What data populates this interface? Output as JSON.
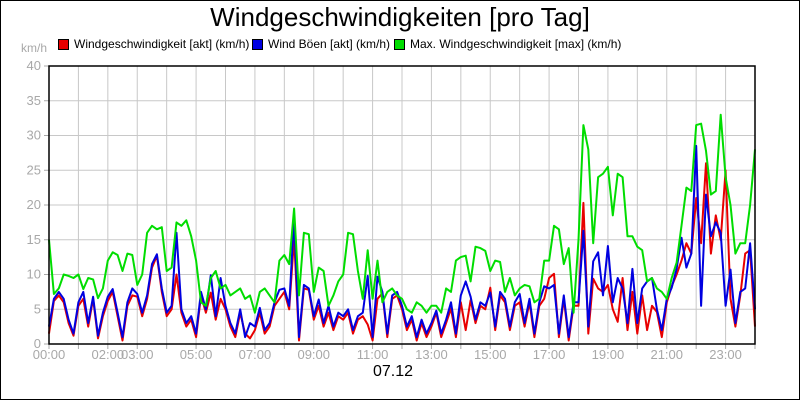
{
  "title": "Windgeschwindigkeiten [pro Tag]",
  "unit_label": "km/h",
  "date_label": "07.12",
  "colors": {
    "background": "#ffffff",
    "grid": "#c8c8c8",
    "axis": "#000000",
    "tick_text": "#a8a8a8",
    "title_text": "#000000"
  },
  "chart_data": {
    "type": "line",
    "title": "Windgeschwindigkeiten [pro Tag]",
    "xlabel": "07.12",
    "ylabel": "km/h",
    "ylim": [
      0,
      40
    ],
    "y_ticks": [
      0,
      5,
      10,
      15,
      20,
      25,
      30,
      35,
      40
    ],
    "x_hours_range": [
      0,
      24
    ],
    "grid": "vertical line every hour, horizontal every 5 km/h",
    "legend_position": "top",
    "interval_minutes": 10,
    "x_tick_labels": [
      {
        "hour": 0,
        "label": "00:00"
      },
      {
        "hour": 2,
        "label": "02:00"
      },
      {
        "hour": 3,
        "label": "03:00"
      },
      {
        "hour": 5,
        "label": "05:00"
      },
      {
        "hour": 7,
        "label": "07:00"
      },
      {
        "hour": 9,
        "label": "09:00"
      },
      {
        "hour": 11,
        "label": "11:00"
      },
      {
        "hour": 13,
        "label": "13:00"
      },
      {
        "hour": 15,
        "label": "15:00"
      },
      {
        "hour": 17,
        "label": "17:00"
      },
      {
        "hour": 19,
        "label": "19:00"
      },
      {
        "hour": 21,
        "label": "21:00"
      },
      {
        "hour": 23,
        "label": "23:00"
      }
    ],
    "series": [
      {
        "name": "Windgeschwindigkeit [akt] (km/h)",
        "color": "#e80000",
        "values": [
          1.5,
          6.2,
          7.0,
          6.0,
          3.0,
          1.2,
          5.5,
          6.5,
          2.5,
          6.5,
          0.8,
          4.0,
          6.2,
          7.5,
          4.0,
          0.5,
          5.5,
          7.0,
          6.8,
          4.0,
          6.5,
          11.0,
          12.7,
          7.5,
          4.0,
          5.0,
          10.0,
          4.5,
          2.5,
          3.5,
          1.0,
          7.0,
          4.5,
          7.4,
          3.5,
          6.5,
          5.0,
          2.5,
          1.0,
          4.5,
          1.5,
          0.8,
          2.0,
          4.5,
          1.5,
          2.5,
          5.5,
          6.5,
          7.5,
          5.0,
          15.3,
          0.5,
          8.0,
          7.8,
          3.5,
          5.5,
          2.5,
          4.5,
          2.0,
          4.0,
          3.5,
          4.5,
          1.5,
          3.5,
          4.0,
          2.8,
          0.5,
          6.5,
          7.3,
          1.0,
          6.5,
          7.0,
          5.0,
          2.0,
          3.5,
          0.5,
          3.0,
          1.0,
          2.5,
          4.5,
          1.0,
          3.0,
          5.1,
          1.0,
          6.0,
          2.0,
          6.3,
          3.0,
          5.5,
          5.0,
          8.1,
          2.0,
          7.0,
          6.0,
          2.0,
          5.5,
          6.0,
          2.5,
          6.0,
          1.0,
          5.5,
          6.5,
          9.5,
          10.1,
          1.0,
          6.5,
          0.5,
          5.5,
          5.5,
          20.3,
          1.5,
          9.4,
          8.0,
          7.5,
          8.5,
          5.0,
          3.2,
          9.5,
          2.0,
          7.5,
          1.5,
          7.0,
          2.0,
          5.5,
          4.6,
          1.0,
          6.0,
          8.3,
          10.0,
          12.0,
          14.5,
          13.0,
          21.0,
          14.5,
          26.0,
          13.0,
          18.5,
          15.0,
          25.0,
          6.5,
          2.5,
          7.0,
          13.0,
          13.5,
          2.5
        ]
      },
      {
        "name": "Wind Böen [akt] (km/h)",
        "color": "#0000e0",
        "values": [
          2.5,
          6.5,
          7.5,
          6.5,
          3.5,
          1.5,
          6.0,
          7.5,
          3.0,
          6.8,
          1.2,
          4.5,
          6.8,
          7.9,
          4.5,
          1.0,
          6.0,
          8.0,
          7.2,
          4.5,
          7.0,
          11.5,
          12.9,
          8.0,
          4.5,
          5.5,
          16.0,
          5.0,
          3.0,
          4.0,
          1.5,
          7.5,
          5.0,
          9.9,
          4.0,
          9.5,
          5.5,
          3.0,
          1.5,
          5.0,
          1.0,
          3.0,
          2.5,
          5.2,
          2.0,
          3.0,
          6.0,
          7.8,
          8.0,
          5.5,
          18.2,
          1.0,
          8.5,
          8.0,
          4.0,
          6.4,
          3.0,
          5.5,
          2.5,
          4.5,
          4.0,
          5.0,
          2.0,
          4.0,
          4.5,
          9.8,
          1.0,
          9.7,
          7.5,
          1.5,
          7.0,
          7.5,
          5.5,
          2.5,
          4.0,
          1.0,
          3.5,
          1.5,
          3.0,
          4.8,
          1.5,
          3.5,
          6.0,
          1.5,
          7.0,
          9.0,
          6.8,
          3.5,
          6.0,
          5.5,
          7.4,
          2.5,
          7.5,
          6.5,
          2.5,
          6.0,
          7.2,
          3.0,
          6.5,
          1.5,
          6.0,
          8.3,
          8.0,
          8.5,
          1.5,
          7.0,
          1.0,
          6.0,
          6.0,
          16.3,
          2.5,
          11.9,
          13.2,
          7.0,
          14.1,
          6.0,
          9.5,
          8.0,
          3.0,
          10.8,
          3.0,
          8.0,
          9.0,
          9.5,
          5.0,
          2.0,
          6.5,
          8.1,
          10.8,
          15.3,
          11.0,
          13.0,
          28.5,
          5.5,
          21.5,
          15.5,
          17.5,
          16.0,
          5.5,
          10.7,
          3.0,
          7.5,
          8.0,
          14.5,
          5.0
        ]
      },
      {
        "name": "Max. Windgeschwindigkeit [max] (km/h)",
        "color": "#00dd00",
        "values": [
          15.0,
          7.2,
          8.0,
          10.0,
          9.8,
          9.5,
          10.0,
          7.9,
          9.5,
          9.3,
          6.6,
          8.0,
          12.0,
          13.2,
          12.8,
          10.5,
          13.0,
          12.8,
          8.5,
          10.0,
          16.0,
          17.0,
          16.5,
          16.8,
          10.5,
          11.0,
          17.5,
          17.0,
          17.8,
          15.5,
          12.0,
          6.0,
          5.5,
          9.5,
          10.5,
          8.0,
          8.5,
          7.0,
          7.5,
          8.0,
          6.5,
          7.0,
          4.5,
          7.5,
          8.0,
          7.0,
          6.0,
          12.0,
          12.8,
          11.5,
          19.5,
          7.0,
          16.0,
          15.8,
          7.5,
          11.0,
          10.5,
          5.5,
          7.0,
          9.0,
          10.0,
          16.0,
          15.8,
          10.5,
          6.5,
          13.5,
          6.5,
          12.0,
          6.0,
          7.5,
          8.0,
          7.0,
          6.5,
          5.0,
          4.5,
          6.0,
          5.5,
          4.5,
          5.5,
          5.5,
          4.5,
          8.0,
          7.5,
          12.0,
          12.5,
          12.7,
          9.0,
          14.0,
          13.8,
          13.4,
          10.5,
          12.0,
          11.8,
          7.5,
          9.5,
          7.0,
          8.0,
          8.5,
          8.3,
          6.0,
          6.5,
          12.0,
          12.0,
          17.0,
          16.5,
          11.5,
          13.8,
          4.5,
          15.0,
          31.5,
          28.0,
          14.5,
          24.0,
          24.5,
          25.5,
          18.5,
          24.5,
          24.0,
          15.5,
          15.5,
          14.0,
          13.5,
          9.0,
          9.5,
          8.0,
          7.5,
          6.5,
          9.5,
          11.7,
          17.0,
          22.5,
          22.0,
          31.5,
          31.7,
          27.8,
          21.5,
          22.0,
          33.0,
          24.0,
          20.0,
          13.0,
          14.5,
          14.5,
          20.0,
          28.0
        ]
      }
    ]
  }
}
